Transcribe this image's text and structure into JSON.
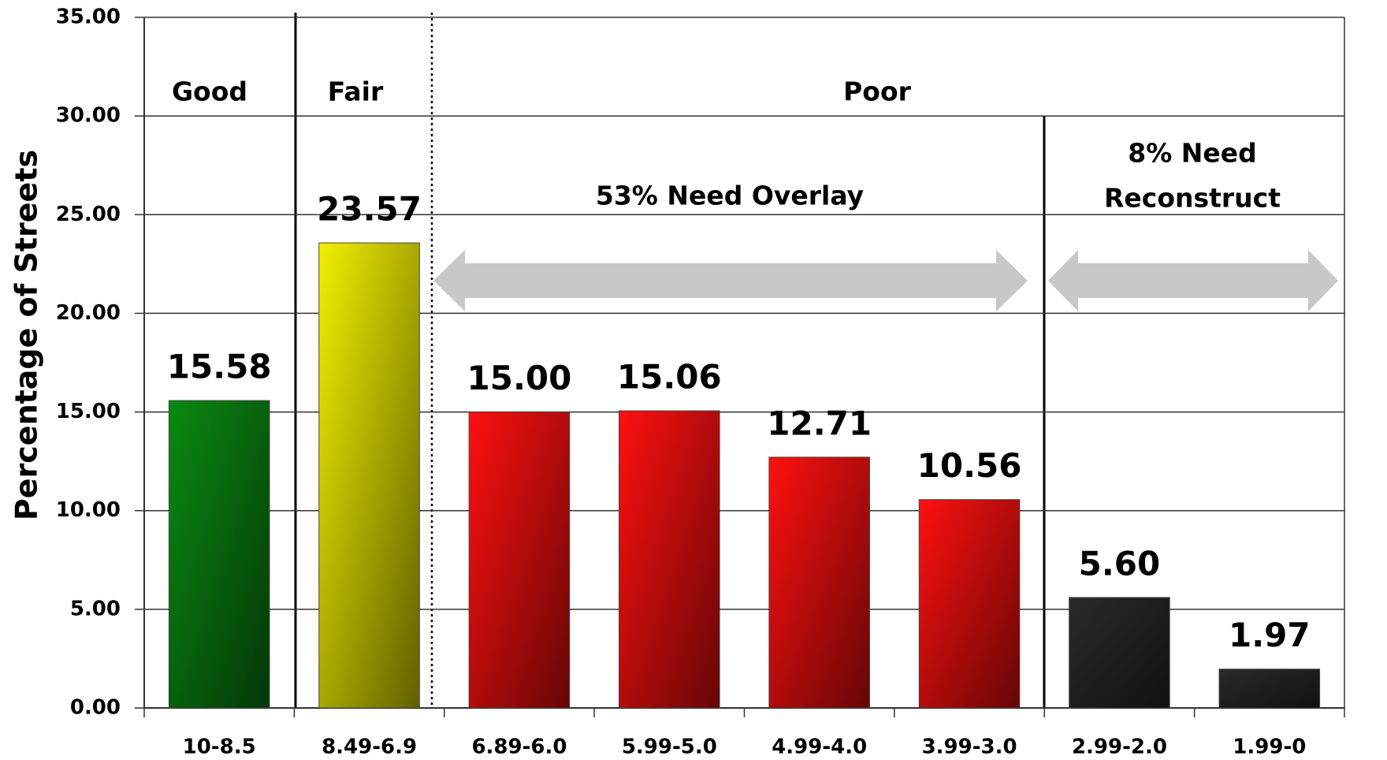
{
  "chart_data": {
    "type": "bar",
    "y_axis_label": "Percentage of Streets",
    "categories": [
      "10-8.5",
      "8.49-6.9",
      "6.89-6.0",
      "5.99-5.0",
      "4.99-4.0",
      "3.99-3.0",
      "2.99-2.0",
      "1.99-0"
    ],
    "values": [
      15.58,
      23.57,
      15.0,
      15.06,
      12.71,
      10.56,
      5.6,
      1.97
    ],
    "value_labels": [
      "15.58",
      "23.57",
      "15.00",
      "15.06",
      "12.71",
      "10.56",
      "5.60",
      "1.97"
    ],
    "colors": [
      "#0b8a12",
      "#f2f000",
      "#ff1010",
      "#ff1010",
      "#ff1010",
      "#ff1010",
      "#2a2a2a",
      "#2a2a2a"
    ],
    "ylim": [
      0,
      35
    ],
    "yticks": [
      {
        "value": 0,
        "label": "0.00"
      },
      {
        "value": 5,
        "label": "5.00"
      },
      {
        "value": 10,
        "label": "10.00"
      },
      {
        "value": 15,
        "label": "15.00"
      },
      {
        "value": 20,
        "label": "20.00"
      },
      {
        "value": 25,
        "label": "25.00"
      },
      {
        "value": 30,
        "label": "30.00"
      },
      {
        "value": 35,
        "label": "35.00"
      }
    ],
    "grid": true,
    "annotations": [
      "Good",
      "Fair",
      "Poor",
      "53% Need Overlay",
      [
        "8% Need",
        "Reconstruct"
      ]
    ]
  }
}
